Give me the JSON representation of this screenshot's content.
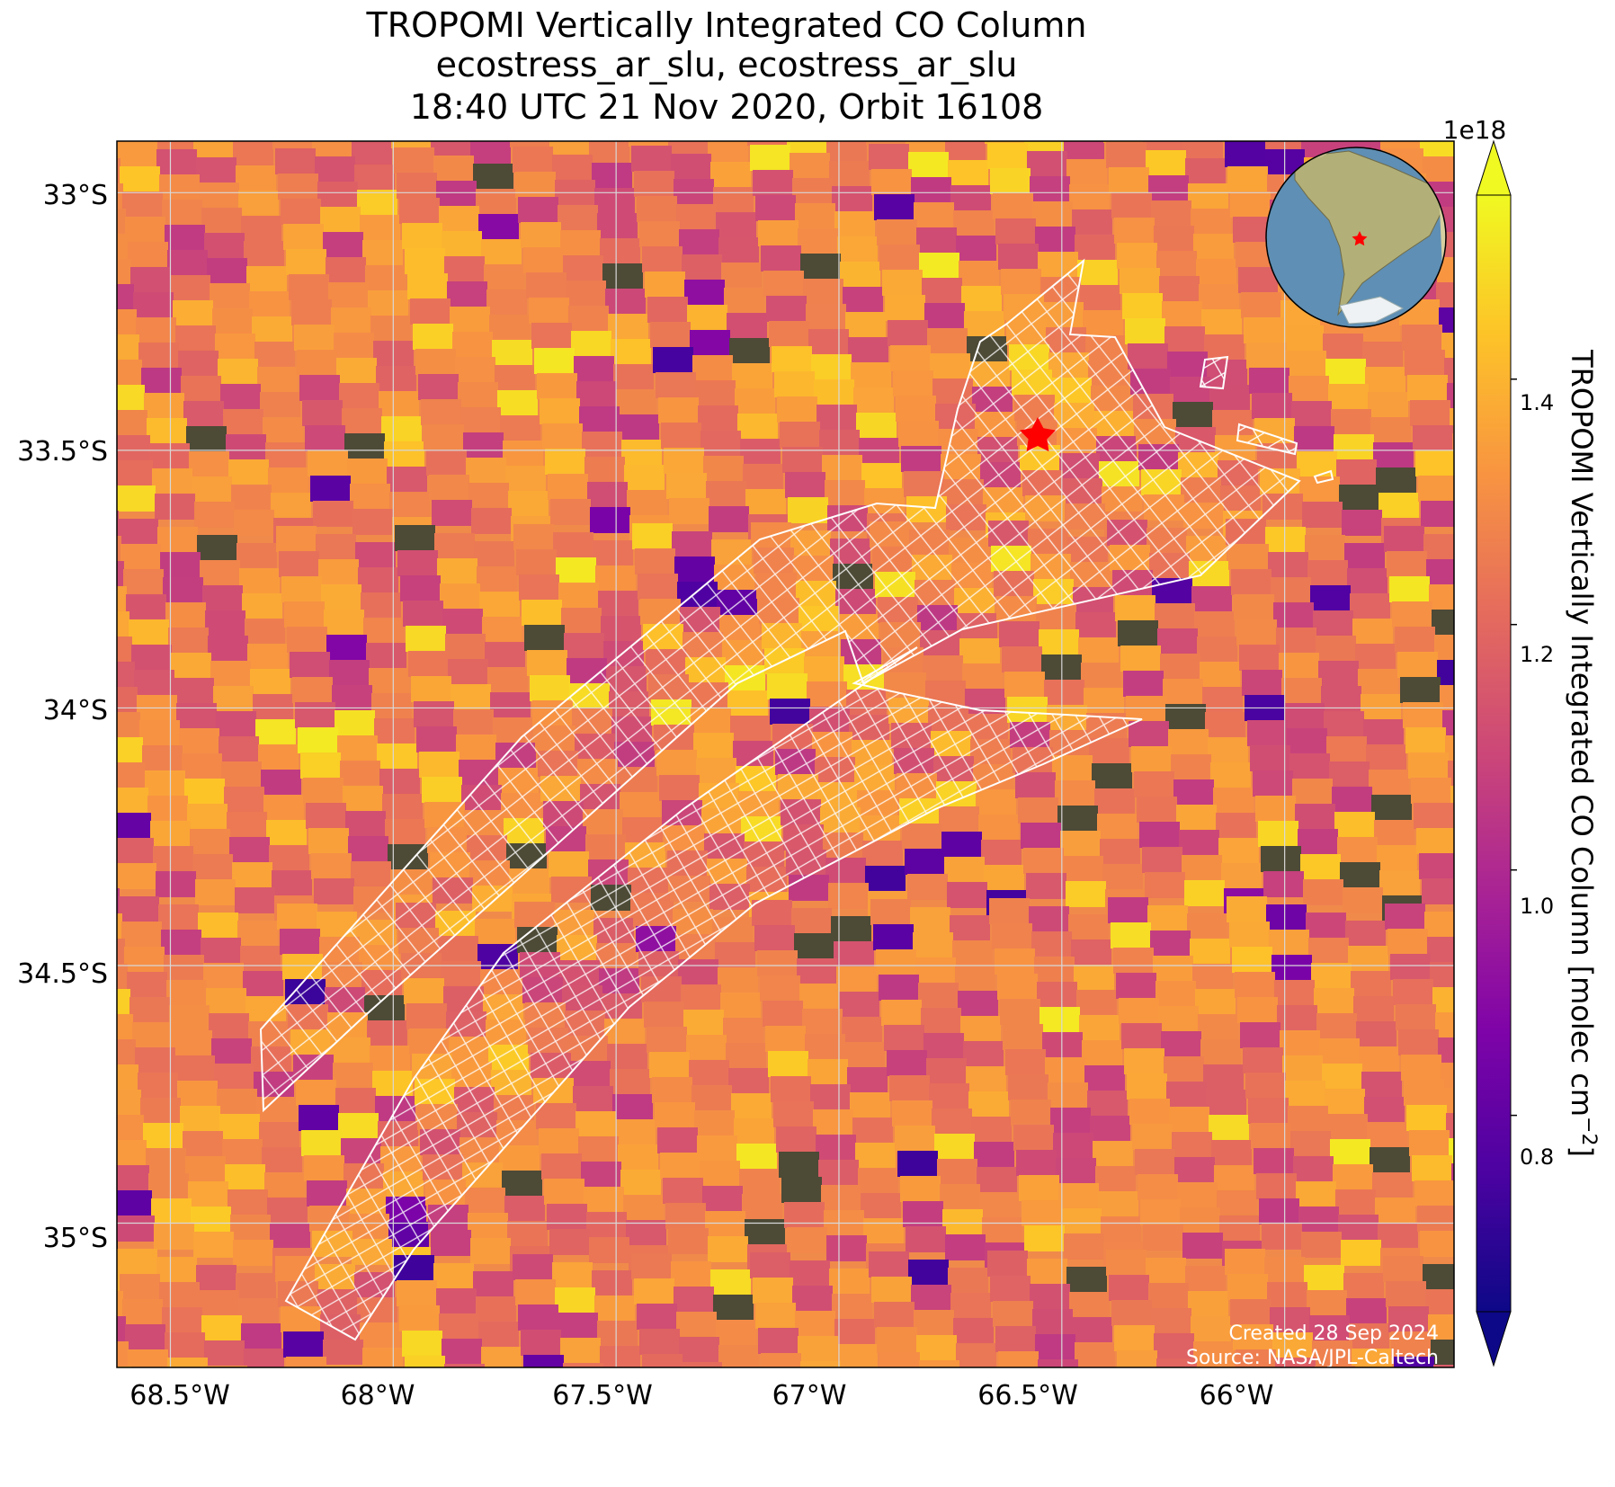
{
  "title": {
    "line1": "TROPOMI Vertically Integrated CO Column",
    "line2": "ecostress_ar_slu, ecostress_ar_slu",
    "line3": "18:40 UTC 21 Nov 2020, Orbit 16108"
  },
  "colorbar": {
    "label": "TROPOMI Vertically Integrated CO Column [molec cm",
    "label_exponent": "−2",
    "label_close": "]",
    "offset_text": "1e18",
    "ticks": [
      "0.8",
      "1.0",
      "1.2",
      "1.4"
    ],
    "tick_values": [
      0.8,
      1.0,
      1.2,
      1.4
    ],
    "vmin": 0.64,
    "vmax": 1.55,
    "colormap": "plasma",
    "extend": "both"
  },
  "credits": {
    "created": "Created 28 Sep 2024",
    "source": "Source: NASA/JPL-Caltech"
  },
  "map": {
    "lon_range": [
      -68.62,
      -65.62
    ],
    "lat_range": [
      -35.28,
      -32.9
    ],
    "lon_ticks": [
      "68.5°W",
      "68°W",
      "67.5°W",
      "67°W",
      "66.5°W",
      "66°W"
    ],
    "lon_tick_values": [
      -68.5,
      -68.0,
      -67.5,
      -67.0,
      -66.5,
      -66.0
    ],
    "lat_ticks": [
      "33°S",
      "33.5°S",
      "34°S",
      "34.5°S",
      "35°S"
    ],
    "lat_tick_values": [
      -33.0,
      -33.5,
      -34.0,
      -34.5,
      -35.0
    ],
    "gridlines": true,
    "target_marker": {
      "lon": -66.45,
      "lat": -33.47,
      "symbol": "star",
      "color": "#ff0000"
    },
    "inset_globe": {
      "region": "South America",
      "marker_color": "#ff0000"
    }
  },
  "colors": {
    "swath_outline": "#ffffff",
    "bare_ground": "#4d4a36",
    "star": "#ff0000"
  }
}
